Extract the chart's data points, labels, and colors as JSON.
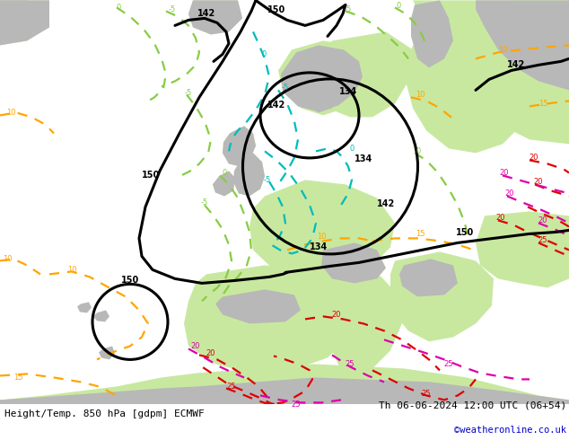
{
  "title_left": "Height/Temp. 850 hPa [gdpm] ECMWF",
  "title_right": "Th 06-06-2024 12:00 UTC (06+54)",
  "watermark": "©weatheronline.co.uk",
  "bg_green": "#c8e8a0",
  "bg_gray": "#b8b8b8",
  "bg_sea": "#e0e0e0",
  "geop_color": "#000000",
  "orange": "#ffa500",
  "red": "#dd0000",
  "pink": "#dd00aa",
  "cyan": "#00bbbb",
  "green_t": "#88cc44",
  "lw_geo": 2.2,
  "lw_temp": 1.6
}
